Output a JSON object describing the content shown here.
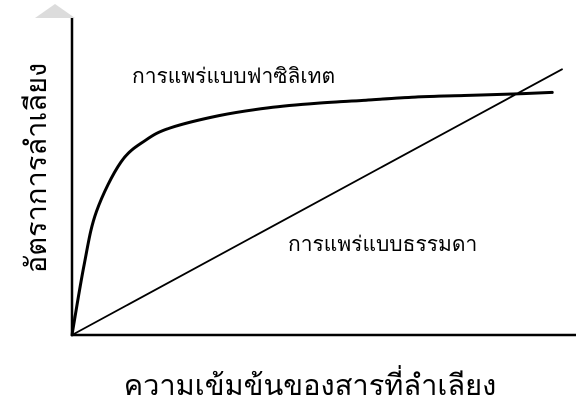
{
  "chart_data": {
    "type": "line",
    "title": "",
    "xlabel": "ความเข้มข้นของสารที่ลำเลียง",
    "ylabel": "อัตราการลำเลียง",
    "xlim": [
      0,
      1
    ],
    "ylim": [
      0,
      1
    ],
    "grid": false,
    "legend": "none",
    "series": [
      {
        "name": "การแพร่แบบฟาซิลิเทต",
        "x": [
          0,
          0.025,
          0.05,
          0.1,
          0.15,
          0.2,
          0.3,
          0.4,
          0.5,
          0.6,
          0.7,
          0.8,
          0.9,
          0.98
        ],
        "y": [
          0,
          0.23,
          0.4,
          0.56,
          0.63,
          0.67,
          0.71,
          0.735,
          0.75,
          0.76,
          0.77,
          0.775,
          0.78,
          0.785
        ]
      },
      {
        "name": "การแพร่แบบธรรมดา",
        "x": [
          0,
          1
        ],
        "y": [
          0,
          0.86
        ]
      }
    ]
  }
}
